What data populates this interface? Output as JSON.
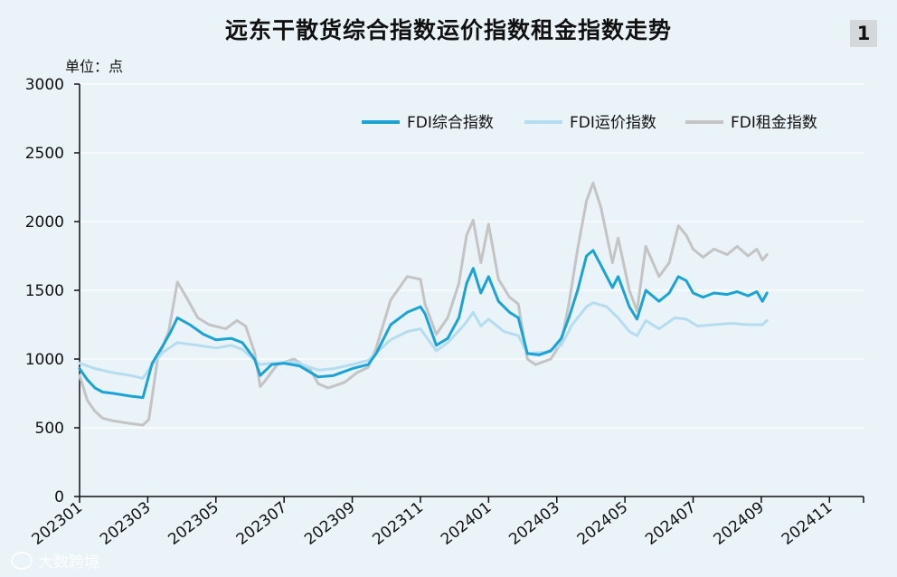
{
  "header": {
    "title": "远东干散货综合指数运价指数租金指数走势",
    "figure_number": "1",
    "unit": "单位：点"
  },
  "watermark": {
    "text": "大数跨境",
    "icon": "circle-logo-icon"
  },
  "chart_data": {
    "type": "line",
    "title": "远东干散货综合指数运价指数租金指数走势",
    "ylabel": "单位：点",
    "ylim": [
      0,
      3000
    ],
    "yticks": [
      "0",
      "500",
      "1000",
      "1500",
      "2000",
      "2500",
      "3000"
    ],
    "xticks": [
      "202301",
      "202303",
      "202305",
      "202307",
      "202309",
      "202311",
      "202401",
      "202403",
      "202405",
      "202407",
      "202409",
      "202411"
    ],
    "xlim": [
      "202301",
      "202412"
    ],
    "grid": true,
    "legend_position": "top-right",
    "series": [
      {
        "name": "FDI综合指数",
        "color": "#1aa3d4",
        "points": [
          [
            "2023-01-01",
            930
          ],
          [
            "2023-01-08",
            850
          ],
          [
            "2023-01-15",
            790
          ],
          [
            "2023-01-22",
            760
          ],
          [
            "2023-02-01",
            750
          ],
          [
            "2023-02-15",
            730
          ],
          [
            "2023-02-25",
            720
          ],
          [
            "2023-03-05",
            970
          ],
          [
            "2023-03-15",
            1100
          ],
          [
            "2023-03-22",
            1200
          ],
          [
            "2023-03-28",
            1300
          ],
          [
            "2023-04-08",
            1250
          ],
          [
            "2023-04-20",
            1180
          ],
          [
            "2023-05-01",
            1140
          ],
          [
            "2023-05-15",
            1150
          ],
          [
            "2023-05-25",
            1120
          ],
          [
            "2023-06-05",
            1000
          ],
          [
            "2023-06-10",
            880
          ],
          [
            "2023-06-20",
            960
          ],
          [
            "2023-07-01",
            970
          ],
          [
            "2023-07-15",
            950
          ],
          [
            "2023-08-01",
            870
          ],
          [
            "2023-08-15",
            880
          ],
          [
            "2023-09-01",
            930
          ],
          [
            "2023-09-15",
            960
          ],
          [
            "2023-09-22",
            1040
          ],
          [
            "2023-10-05",
            1250
          ],
          [
            "2023-10-20",
            1340
          ],
          [
            "2023-11-01",
            1380
          ],
          [
            "2023-11-05",
            1330
          ],
          [
            "2023-11-15",
            1100
          ],
          [
            "2023-11-25",
            1150
          ],
          [
            "2023-12-05",
            1300
          ],
          [
            "2023-12-12",
            1550
          ],
          [
            "2023-12-18",
            1660
          ],
          [
            "2023-12-25",
            1480
          ],
          [
            "2024-01-01",
            1600
          ],
          [
            "2024-01-10",
            1420
          ],
          [
            "2024-01-20",
            1340
          ],
          [
            "2024-01-28",
            1300
          ],
          [
            "2024-02-05",
            1040
          ],
          [
            "2024-02-15",
            1030
          ],
          [
            "2024-02-25",
            1060
          ],
          [
            "2024-03-05",
            1150
          ],
          [
            "2024-03-12",
            1300
          ],
          [
            "2024-03-20",
            1500
          ],
          [
            "2024-03-28",
            1750
          ],
          [
            "2024-04-03",
            1790
          ],
          [
            "2024-04-10",
            1680
          ],
          [
            "2024-04-20",
            1520
          ],
          [
            "2024-04-25",
            1600
          ],
          [
            "2024-05-05",
            1380
          ],
          [
            "2024-05-12",
            1290
          ],
          [
            "2024-05-20",
            1500
          ],
          [
            "2024-06-01",
            1420
          ],
          [
            "2024-06-10",
            1480
          ],
          [
            "2024-06-18",
            1600
          ],
          [
            "2024-06-25",
            1570
          ],
          [
            "2024-07-01",
            1480
          ],
          [
            "2024-07-10",
            1450
          ],
          [
            "2024-07-20",
            1480
          ],
          [
            "2024-08-01",
            1470
          ],
          [
            "2024-08-10",
            1490
          ],
          [
            "2024-08-20",
            1460
          ],
          [
            "2024-08-28",
            1490
          ],
          [
            "2024-09-02",
            1420
          ],
          [
            "2024-09-06",
            1480
          ]
        ]
      },
      {
        "name": "FDI运价指数",
        "color": "#b5ddf0",
        "points": [
          [
            "2023-01-01",
            970
          ],
          [
            "2023-01-15",
            930
          ],
          [
            "2023-02-01",
            900
          ],
          [
            "2023-02-15",
            880
          ],
          [
            "2023-02-25",
            860
          ],
          [
            "2023-03-05",
            960
          ],
          [
            "2023-03-15",
            1050
          ],
          [
            "2023-03-28",
            1120
          ],
          [
            "2023-04-15",
            1100
          ],
          [
            "2023-05-01",
            1080
          ],
          [
            "2023-05-15",
            1100
          ],
          [
            "2023-05-25",
            1070
          ],
          [
            "2023-06-10",
            960
          ],
          [
            "2023-06-20",
            970
          ],
          [
            "2023-07-10",
            980
          ],
          [
            "2023-08-01",
            920
          ],
          [
            "2023-08-15",
            930
          ],
          [
            "2023-09-01",
            960
          ],
          [
            "2023-09-15",
            990
          ],
          [
            "2023-10-05",
            1140
          ],
          [
            "2023-10-20",
            1200
          ],
          [
            "2023-11-01",
            1220
          ],
          [
            "2023-11-15",
            1060
          ],
          [
            "2023-11-25",
            1120
          ],
          [
            "2023-12-10",
            1250
          ],
          [
            "2023-12-18",
            1340
          ],
          [
            "2023-12-25",
            1240
          ],
          [
            "2024-01-01",
            1290
          ],
          [
            "2024-01-15",
            1200
          ],
          [
            "2024-01-28",
            1170
          ],
          [
            "2024-02-05",
            1040
          ],
          [
            "2024-02-20",
            1050
          ],
          [
            "2024-03-05",
            1100
          ],
          [
            "2024-03-15",
            1250
          ],
          [
            "2024-03-28",
            1380
          ],
          [
            "2024-04-03",
            1410
          ],
          [
            "2024-04-15",
            1380
          ],
          [
            "2024-04-25",
            1300
          ],
          [
            "2024-05-05",
            1200
          ],
          [
            "2024-05-12",
            1170
          ],
          [
            "2024-05-20",
            1280
          ],
          [
            "2024-06-01",
            1220
          ],
          [
            "2024-06-15",
            1300
          ],
          [
            "2024-06-25",
            1290
          ],
          [
            "2024-07-05",
            1240
          ],
          [
            "2024-07-20",
            1250
          ],
          [
            "2024-08-05",
            1260
          ],
          [
            "2024-08-20",
            1250
          ],
          [
            "2024-09-02",
            1250
          ],
          [
            "2024-09-06",
            1280
          ]
        ]
      },
      {
        "name": "FDI租金指数",
        "color": "#c4c4c4",
        "points": [
          [
            "2023-01-01",
            880
          ],
          [
            "2023-01-08",
            700
          ],
          [
            "2023-01-15",
            620
          ],
          [
            "2023-01-22",
            570
          ],
          [
            "2023-02-01",
            550
          ],
          [
            "2023-02-15",
            530
          ],
          [
            "2023-02-25",
            520
          ],
          [
            "2023-03-02",
            560
          ],
          [
            "2023-03-10",
            1000
          ],
          [
            "2023-03-20",
            1200
          ],
          [
            "2023-03-28",
            1560
          ],
          [
            "2023-04-05",
            1450
          ],
          [
            "2023-04-15",
            1300
          ],
          [
            "2023-04-25",
            1250
          ],
          [
            "2023-05-10",
            1220
          ],
          [
            "2023-05-20",
            1280
          ],
          [
            "2023-05-28",
            1240
          ],
          [
            "2023-06-05",
            1050
          ],
          [
            "2023-06-10",
            800
          ],
          [
            "2023-06-15",
            850
          ],
          [
            "2023-06-25",
            960
          ],
          [
            "2023-07-10",
            1000
          ],
          [
            "2023-07-25",
            920
          ],
          [
            "2023-08-01",
            820
          ],
          [
            "2023-08-10",
            790
          ],
          [
            "2023-08-25",
            830
          ],
          [
            "2023-09-05",
            900
          ],
          [
            "2023-09-15",
            940
          ],
          [
            "2023-09-22",
            1080
          ],
          [
            "2023-10-05",
            1430
          ],
          [
            "2023-10-20",
            1600
          ],
          [
            "2023-11-01",
            1580
          ],
          [
            "2023-11-05",
            1400
          ],
          [
            "2023-11-15",
            1180
          ],
          [
            "2023-11-25",
            1300
          ],
          [
            "2023-12-05",
            1550
          ],
          [
            "2023-12-12",
            1900
          ],
          [
            "2023-12-18",
            2010
          ],
          [
            "2023-12-25",
            1700
          ],
          [
            "2024-01-01",
            1980
          ],
          [
            "2024-01-10",
            1580
          ],
          [
            "2024-01-20",
            1450
          ],
          [
            "2024-01-28",
            1400
          ],
          [
            "2024-02-05",
            1000
          ],
          [
            "2024-02-12",
            960
          ],
          [
            "2024-02-25",
            1000
          ],
          [
            "2024-03-05",
            1120
          ],
          [
            "2024-03-12",
            1400
          ],
          [
            "2024-03-20",
            1800
          ],
          [
            "2024-03-28",
            2150
          ],
          [
            "2024-04-03",
            2280
          ],
          [
            "2024-04-10",
            2100
          ],
          [
            "2024-04-20",
            1700
          ],
          [
            "2024-04-25",
            1880
          ],
          [
            "2024-05-05",
            1500
          ],
          [
            "2024-05-12",
            1350
          ],
          [
            "2024-05-20",
            1820
          ],
          [
            "2024-06-01",
            1600
          ],
          [
            "2024-06-10",
            1700
          ],
          [
            "2024-06-18",
            1970
          ],
          [
            "2024-06-25",
            1900
          ],
          [
            "2024-07-01",
            1800
          ],
          [
            "2024-07-10",
            1740
          ],
          [
            "2024-07-20",
            1800
          ],
          [
            "2024-08-01",
            1760
          ],
          [
            "2024-08-10",
            1820
          ],
          [
            "2024-08-20",
            1750
          ],
          [
            "2024-08-28",
            1800
          ],
          [
            "2024-09-02",
            1720
          ],
          [
            "2024-09-06",
            1760
          ]
        ]
      }
    ]
  }
}
